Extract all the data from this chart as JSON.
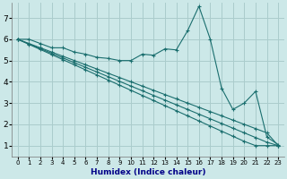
{
  "xlabel": "Humidex (Indice chaleur)",
  "bg_color": "#cce8e8",
  "grid_color": "#aacccc",
  "line_color": "#1a6e6e",
  "xlim": [
    -0.5,
    23.5
  ],
  "ylim": [
    0.5,
    7.7
  ],
  "xticks": [
    0,
    1,
    2,
    3,
    4,
    5,
    6,
    7,
    8,
    9,
    10,
    11,
    12,
    13,
    14,
    15,
    16,
    17,
    18,
    19,
    20,
    21,
    22,
    23
  ],
  "yticks": [
    1,
    2,
    3,
    4,
    5,
    6,
    7
  ],
  "lines": [
    {
      "x": [
        0,
        1,
        2,
        3,
        4,
        5,
        6,
        7,
        8,
        9,
        10,
        11,
        12,
        13,
        14,
        15,
        16,
        17,
        18,
        19,
        20,
        21,
        22,
        23
      ],
      "y": [
        6.0,
        6.0,
        5.8,
        5.6,
        5.6,
        5.4,
        5.3,
        5.15,
        5.1,
        5.0,
        5.0,
        5.3,
        5.25,
        5.55,
        5.5,
        6.4,
        7.55,
        6.0,
        3.7,
        2.7,
        3.0,
        3.55,
        1.4,
        1.05
      ]
    },
    {
      "x": [
        0,
        1,
        2,
        3,
        4,
        5,
        6,
        7,
        8,
        9,
        10,
        11,
        12,
        13,
        14,
        15,
        16,
        17,
        18,
        19,
        20,
        21,
        22,
        23
      ],
      "y": [
        6.0,
        5.76,
        5.52,
        5.28,
        5.04,
        4.8,
        4.56,
        4.32,
        4.08,
        3.84,
        3.6,
        3.36,
        3.12,
        2.88,
        2.64,
        2.4,
        2.16,
        1.92,
        1.68,
        1.44,
        1.2,
        1.0,
        1.0,
        1.0
      ]
    },
    {
      "x": [
        0,
        1,
        2,
        3,
        4,
        5,
        6,
        7,
        8,
        9,
        10,
        11,
        12,
        13,
        14,
        15,
        16,
        17,
        18,
        19,
        20,
        21,
        22,
        23
      ],
      "y": [
        6.0,
        5.78,
        5.56,
        5.34,
        5.12,
        4.9,
        4.68,
        4.46,
        4.24,
        4.02,
        3.8,
        3.58,
        3.36,
        3.14,
        2.92,
        2.7,
        2.48,
        2.26,
        2.04,
        1.82,
        1.6,
        1.38,
        1.16,
        1.0
      ]
    },
    {
      "x": [
        0,
        1,
        2,
        3,
        4,
        5,
        6,
        7,
        8,
        9,
        10,
        11,
        12,
        13,
        14,
        15,
        16,
        17,
        18,
        19,
        20,
        21,
        22,
        23
      ],
      "y": [
        6.0,
        5.8,
        5.6,
        5.4,
        5.2,
        5.0,
        4.8,
        4.6,
        4.4,
        4.2,
        4.0,
        3.8,
        3.6,
        3.4,
        3.2,
        3.0,
        2.8,
        2.6,
        2.4,
        2.2,
        2.0,
        1.8,
        1.6,
        1.0
      ]
    }
  ]
}
